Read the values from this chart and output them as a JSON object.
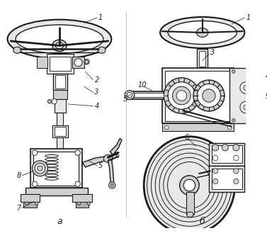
{
  "background_color": "#ffffff",
  "line_color": "#1a1a1a",
  "text_color": "#1a1a1a",
  "label_a": "а",
  "label_b": "б",
  "font_size": 7,
  "gray_light": "#e8e8e8",
  "gray_mid": "#d0d0d0",
  "gray_dark": "#b0b0b0",
  "white": "#ffffff"
}
